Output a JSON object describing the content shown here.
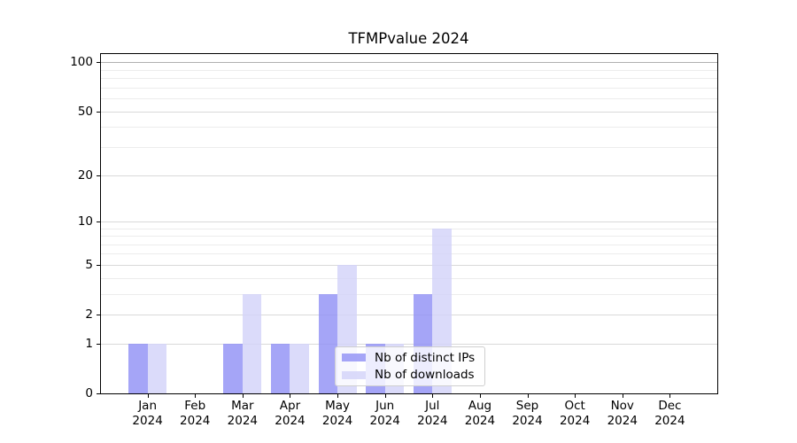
{
  "title": "TFMPvalue 2024",
  "chart_data": {
    "type": "bar",
    "title": "TFMPvalue 2024",
    "xlabel": "",
    "ylabel": "",
    "yscale": "log1p",
    "ylim": [
      0,
      114
    ],
    "grid": true,
    "legend_position": "lower center",
    "categories": [
      {
        "month": "Jan",
        "year": "2024"
      },
      {
        "month": "Feb",
        "year": "2024"
      },
      {
        "month": "Mar",
        "year": "2024"
      },
      {
        "month": "Apr",
        "year": "2024"
      },
      {
        "month": "May",
        "year": "2024"
      },
      {
        "month": "Jun",
        "year": "2024"
      },
      {
        "month": "Jul",
        "year": "2024"
      },
      {
        "month": "Aug",
        "year": "2024"
      },
      {
        "month": "Sep",
        "year": "2024"
      },
      {
        "month": "Oct",
        "year": "2024"
      },
      {
        "month": "Nov",
        "year": "2024"
      },
      {
        "month": "Dec",
        "year": "2024"
      }
    ],
    "series": [
      {
        "name": "Nb of distinct IPs",
        "color": "#8f8ff5",
        "alpha": 0.8,
        "values": [
          1,
          0,
          1,
          1,
          3,
          1,
          3,
          0,
          0,
          0,
          0,
          0
        ]
      },
      {
        "name": "Nb of downloads",
        "color": "#d2d2f9",
        "alpha": 0.8,
        "values": [
          1,
          0,
          3,
          1,
          5,
          1,
          9,
          0,
          0,
          0,
          0,
          0
        ]
      }
    ],
    "y_ticks": [
      0,
      1,
      2,
      5,
      10,
      20,
      50,
      100
    ],
    "y_minor_gridlines": [
      3,
      4,
      6,
      7,
      8,
      9,
      30,
      40,
      60,
      70,
      80,
      90
    ]
  },
  "colors": {
    "grid_major": "#d9d9d9",
    "grid_minor": "#ececec",
    "grid_top": "#b0b0b0",
    "axis": "#000000",
    "text": "#000000",
    "legend_border": "#cfcfcf"
  }
}
